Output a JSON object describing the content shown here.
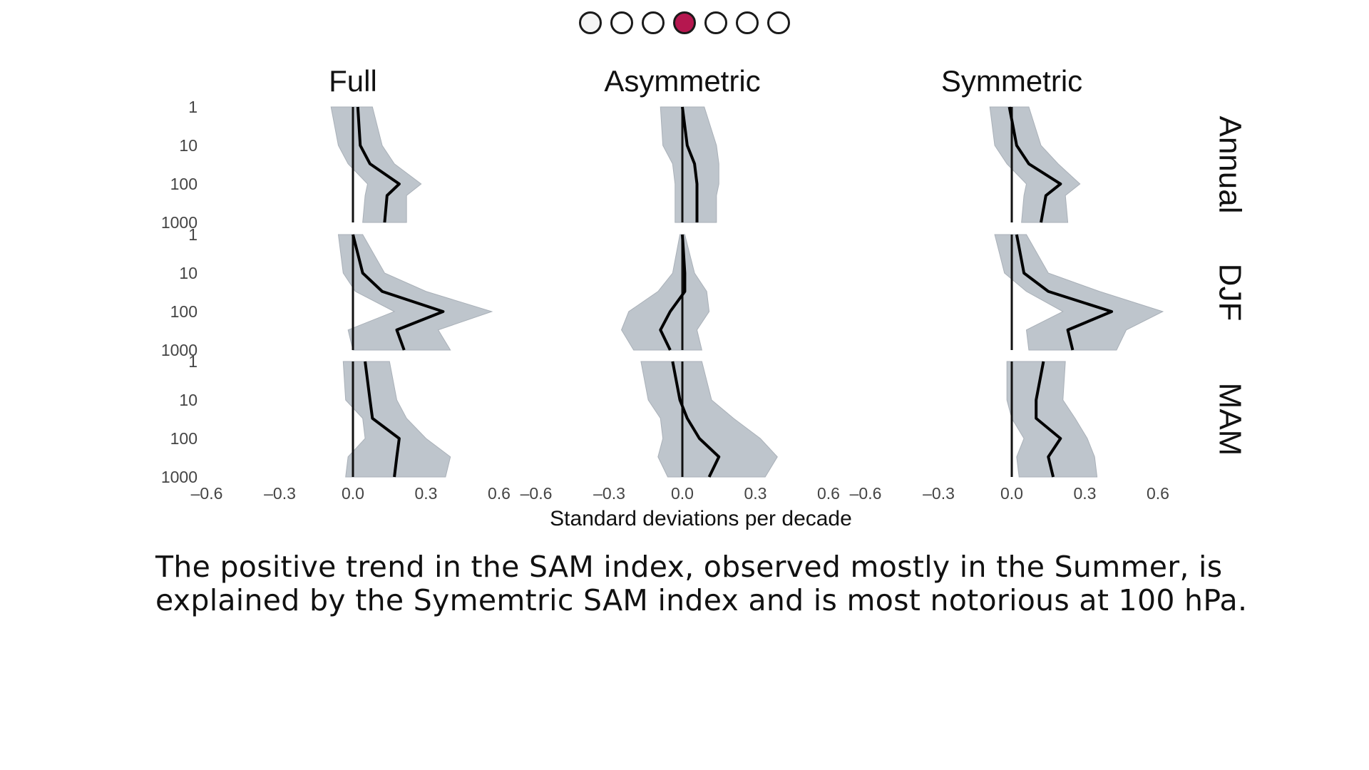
{
  "pager": {
    "dots": [
      {
        "label": "slide 1",
        "active": false
      },
      {
        "label": "slide 2",
        "active": false
      },
      {
        "label": "slide 3",
        "active": false
      },
      {
        "label": "slide 4",
        "active": true
      },
      {
        "label": "slide 5",
        "active": false
      },
      {
        "label": "slide 6",
        "active": false
      },
      {
        "label": "slide 7",
        "active": false
      }
    ],
    "active_color": "#b5174f"
  },
  "caption": {
    "line1": "The positive trend in the SAM index, observed mostly in the Summer, is",
    "line2": "explained by the Symemtric SAM index and is most notorious at 100 hPa."
  },
  "chart_data": {
    "type": "line",
    "columns": [
      "Full",
      "Asymmetric",
      "Symmetric"
    ],
    "rows": [
      "Annual",
      "DJF",
      "MAM"
    ],
    "xlabel": "Standard deviations per decade",
    "xlim": [
      -0.6,
      0.6
    ],
    "xticks": [
      "–0.6",
      "–0.3",
      "0.0",
      "0.3",
      "0.6"
    ],
    "y_scale": "log",
    "ylim": [
      1000,
      1
    ],
    "yticks": [
      "1",
      "10",
      "100",
      "1000"
    ],
    "colors": {
      "band": "#bec5cc",
      "line": "#000000"
    },
    "panels": [
      {
        "row": "Annual",
        "column": "Full",
        "p": [
          1,
          10,
          30,
          100,
          200,
          1000
        ],
        "mean": [
          0.02,
          0.03,
          0.07,
          0.19,
          0.14,
          0.13
        ],
        "lo": [
          -0.09,
          -0.06,
          -0.02,
          0.06,
          0.05,
          0.04
        ],
        "hi": [
          0.08,
          0.12,
          0.17,
          0.28,
          0.22,
          0.22
        ]
      },
      {
        "row": "Annual",
        "column": "Asymmetric",
        "p": [
          1,
          10,
          30,
          100,
          200,
          1000
        ],
        "mean": [
          0.0,
          0.02,
          0.05,
          0.06,
          0.06,
          0.06
        ],
        "lo": [
          -0.09,
          -0.08,
          -0.04,
          -0.03,
          -0.03,
          -0.03
        ],
        "hi": [
          0.09,
          0.14,
          0.15,
          0.15,
          0.14,
          0.14
        ]
      },
      {
        "row": "Annual",
        "column": "Symmetric",
        "p": [
          1,
          10,
          30,
          100,
          200,
          1000
        ],
        "mean": [
          -0.01,
          0.02,
          0.07,
          0.2,
          0.14,
          0.12
        ],
        "lo": [
          -0.09,
          -0.07,
          -0.02,
          0.06,
          0.05,
          0.04
        ],
        "hi": [
          0.07,
          0.12,
          0.19,
          0.28,
          0.22,
          0.23
        ]
      },
      {
        "row": "DJF",
        "column": "Full",
        "p": [
          1,
          10,
          30,
          100,
          300,
          1000
        ],
        "mean": [
          0.0,
          0.04,
          0.12,
          0.37,
          0.18,
          0.21
        ],
        "lo": [
          -0.06,
          -0.04,
          0.01,
          0.17,
          -0.02,
          0.0
        ],
        "hi": [
          0.04,
          0.13,
          0.3,
          0.57,
          0.35,
          0.4
        ]
      },
      {
        "row": "DJF",
        "column": "Asymmetric",
        "p": [
          1,
          10,
          30,
          100,
          300,
          1000
        ],
        "mean": [
          0.0,
          0.01,
          0.01,
          -0.05,
          -0.09,
          -0.05
        ],
        "lo": [
          -0.01,
          -0.04,
          -0.1,
          -0.22,
          -0.25,
          -0.2
        ],
        "hi": [
          0.01,
          0.05,
          0.1,
          0.11,
          0.06,
          0.08
        ]
      },
      {
        "row": "DJF",
        "column": "Symmetric",
        "p": [
          1,
          10,
          30,
          100,
          300,
          1000
        ],
        "mean": [
          0.02,
          0.05,
          0.15,
          0.41,
          0.23,
          0.25
        ],
        "lo": [
          -0.07,
          -0.03,
          0.06,
          0.21,
          0.06,
          0.07
        ],
        "hi": [
          0.06,
          0.15,
          0.36,
          0.62,
          0.47,
          0.43
        ]
      },
      {
        "row": "MAM",
        "column": "Full",
        "p": [
          1,
          10,
          30,
          100,
          300,
          1000
        ],
        "mean": [
          0.05,
          0.07,
          0.08,
          0.19,
          0.18,
          0.17
        ],
        "lo": [
          -0.04,
          -0.03,
          0.04,
          0.05,
          -0.02,
          -0.03
        ],
        "hi": [
          0.15,
          0.18,
          0.22,
          0.3,
          0.4,
          0.38
        ]
      },
      {
        "row": "MAM",
        "column": "Asymmetric",
        "p": [
          1,
          10,
          30,
          100,
          300,
          1000
        ],
        "mean": [
          -0.04,
          -0.01,
          0.02,
          0.07,
          0.15,
          0.11
        ],
        "lo": [
          -0.17,
          -0.14,
          -0.09,
          -0.08,
          -0.1,
          -0.06
        ],
        "hi": [
          0.08,
          0.12,
          0.21,
          0.32,
          0.39,
          0.34
        ]
      },
      {
        "row": "MAM",
        "column": "Symmetric",
        "p": [
          1,
          10,
          30,
          100,
          300,
          1000
        ],
        "mean": [
          0.13,
          0.1,
          0.1,
          0.2,
          0.15,
          0.17
        ],
        "lo": [
          -0.02,
          -0.02,
          0.0,
          0.05,
          0.02,
          0.03
        ],
        "hi": [
          0.22,
          0.21,
          0.26,
          0.31,
          0.34,
          0.35
        ]
      }
    ]
  }
}
